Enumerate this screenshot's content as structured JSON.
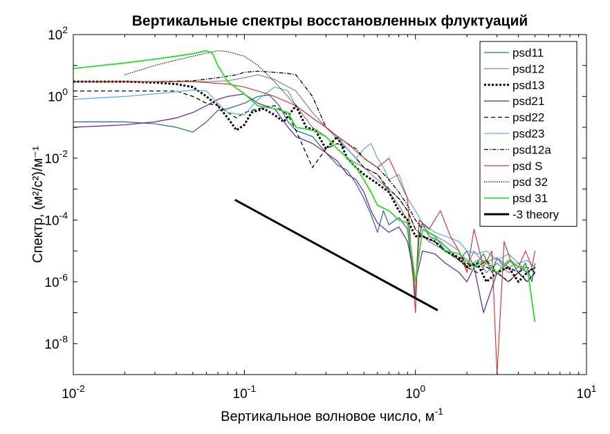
{
  "chart_data": {
    "type": "line",
    "title": "Вертикальные спектры восстановленных флуктуаций",
    "xlabel": "Вертикальное волновое число, м",
    "xlabel_exponent": "-1",
    "ylabel": "Спектр, (м²/с²)/м⁻¹",
    "xscale": "log",
    "yscale": "log",
    "xlim": [
      0.01,
      10
    ],
    "ylim": [
      1e-09,
      100
    ],
    "x_ticks": [
      {
        "value": 0.01,
        "base": "10",
        "exp": "-2"
      },
      {
        "value": 0.1,
        "base": "10",
        "exp": "-1"
      },
      {
        "value": 1,
        "base": "10",
        "exp": "0"
      },
      {
        "value": 10,
        "base": "10",
        "exp": "1"
      }
    ],
    "y_ticks": [
      {
        "value": 1e-08,
        "base": "10",
        "exp": "-8"
      },
      {
        "value": 1e-06,
        "base": "10",
        "exp": "-6"
      },
      {
        "value": 0.0001,
        "base": "10",
        "exp": "-4"
      },
      {
        "value": 0.01,
        "base": "10",
        "exp": "-2"
      },
      {
        "value": 1,
        "base": "10",
        "exp": "0"
      },
      {
        "value": 100,
        "base": "10",
        "exp": "2"
      }
    ],
    "grid": false,
    "legend_position": "top-right",
    "series": [
      {
        "name": "psd11",
        "color": "#2f6da5",
        "dash": "solid",
        "width": 1.3,
        "x": [
          0.01,
          0.02,
          0.03,
          0.04,
          0.05,
          0.06,
          0.07,
          0.08,
          0.1,
          0.12,
          0.14,
          0.16,
          0.18,
          0.2,
          0.25,
          0.3,
          0.35,
          0.4,
          0.45,
          0.5,
          0.55,
          0.6,
          0.65,
          0.7,
          0.8,
          0.9,
          1.0,
          1.05,
          1.1,
          1.2,
          1.4,
          1.6,
          1.8,
          2.0,
          2.2,
          2.5,
          2.8,
          3.0,
          3.3,
          3.6,
          4.0,
          4.4,
          4.8,
          5.0
        ],
        "y": [
          0.15,
          0.15,
          0.13,
          0.1,
          0.07,
          0.15,
          0.35,
          0.4,
          0.6,
          1.0,
          1.1,
          0.5,
          0.15,
          0.08,
          0.05,
          0.015,
          0.006,
          0.004,
          0.0015,
          0.0005,
          0.00015,
          4e-05,
          0.0002,
          7e-05,
          0.00012,
          5e-05,
          3e-07,
          3e-05,
          8e-05,
          3e-05,
          2e-05,
          1e-05,
          5e-06,
          1e-05,
          3e-06,
          8e-06,
          2e-06,
          6e-06,
          3e-06,
          5e-06,
          2e-06,
          4e-06,
          1e-06,
          4e-06
        ]
      },
      {
        "name": "psd12",
        "color": "#8c8c8c",
        "dash": "solid",
        "width": 1.3,
        "x": [
          0.01,
          0.02,
          0.04,
          0.06,
          0.08,
          0.1,
          0.12,
          0.15,
          0.2,
          0.25,
          0.3,
          0.4,
          0.5,
          0.6,
          0.7,
          0.8,
          0.9,
          1.0,
          1.05,
          1.2,
          1.5,
          1.8,
          2.0,
          2.2,
          2.5,
          3.0,
          3.5,
          4.0,
          4.5,
          5.0
        ],
        "y": [
          3.0,
          3.0,
          3.0,
          3.0,
          3.2,
          4.0,
          5.0,
          3.5,
          1.5,
          0.3,
          0.1,
          0.02,
          0.005,
          0.003,
          0.0008,
          0.0003,
          0.0001,
          5e-07,
          8e-05,
          4e-05,
          2e-05,
          1e-05,
          3e-06,
          1e-05,
          4e-06,
          6e-06,
          3e-06,
          4e-06,
          2e-06,
          3e-06
        ]
      },
      {
        "name": "psd13",
        "color": "#000000",
        "dash": "3,2.5",
        "width": 3.0,
        "x": [
          0.01,
          0.02,
          0.03,
          0.04,
          0.05,
          0.06,
          0.07,
          0.08,
          0.09,
          0.1,
          0.11,
          0.13,
          0.15,
          0.17,
          0.2,
          0.23,
          0.26,
          0.3,
          0.35,
          0.4,
          0.45,
          0.5,
          0.6,
          0.7,
          0.8,
          0.9,
          1.0,
          1.1,
          1.3,
          1.5,
          1.8,
          2.0,
          2.3,
          2.6,
          3.0,
          3.5,
          4.0,
          4.5,
          5.0
        ],
        "y": [
          3.0,
          3.0,
          2.8,
          2.5,
          2.0,
          1.0,
          0.5,
          0.2,
          0.08,
          0.12,
          0.3,
          0.4,
          0.25,
          0.15,
          0.5,
          0.1,
          0.08,
          0.02,
          0.05,
          0.01,
          0.005,
          0.003,
          0.0015,
          0.0008,
          0.0002,
          0.0001,
          3e-05,
          3e-05,
          2e-05,
          1e-05,
          6e-06,
          3e-06,
          4e-06,
          1e-06,
          2e-06,
          3e-06,
          1e-06,
          2e-06,
          3e-06
        ]
      },
      {
        "name": "psd21",
        "color": "#6f2a9e",
        "dash": "solid",
        "width": 1.3,
        "x": [
          0.01,
          0.02,
          0.03,
          0.04,
          0.05,
          0.06,
          0.07,
          0.08,
          0.1,
          0.12,
          0.15,
          0.18,
          0.2,
          0.25,
          0.3,
          0.35,
          0.4,
          0.45,
          0.5,
          0.55,
          0.6,
          0.7,
          0.8,
          0.9,
          1.0,
          1.1,
          1.3,
          1.5,
          1.8,
          2.0,
          2.2,
          2.5,
          3.0,
          3.5,
          4.0,
          4.5,
          5.0
        ],
        "y": [
          0.1,
          0.12,
          0.15,
          0.2,
          0.3,
          0.5,
          0.8,
          1.0,
          1.2,
          0.6,
          0.4,
          0.1,
          0.05,
          0.03,
          0.015,
          0.008,
          0.003,
          0.002,
          0.0008,
          0.0002,
          8e-05,
          4e-05,
          6e-05,
          2e-05,
          1e-06,
          1e-05,
          8e-06,
          4e-06,
          2e-06,
          1e-06,
          3e-06,
          1e-07,
          2e-06,
          1e-06,
          2e-06,
          1e-06,
          2e-06
        ]
      },
      {
        "name": "psd22",
        "color": "#000000",
        "dash": "6,4",
        "width": 1.3,
        "x": [
          0.01,
          0.02,
          0.03,
          0.04,
          0.05,
          0.06,
          0.07,
          0.08,
          0.09,
          0.1,
          0.12,
          0.15,
          0.18,
          0.2,
          0.25,
          0.3,
          0.35,
          0.4,
          0.45,
          0.5,
          0.6,
          0.7,
          0.8,
          0.9,
          1.0,
          1.1,
          1.3,
          1.5,
          1.8,
          2.0,
          2.3,
          2.6,
          3.0,
          3.5,
          4.0,
          4.5,
          5.0
        ],
        "y": [
          1.5,
          1.5,
          1.5,
          1.5,
          1.0,
          0.6,
          0.5,
          0.3,
          0.2,
          0.3,
          0.4,
          0.5,
          0.25,
          0.08,
          0.005,
          0.02,
          0.03,
          0.02,
          0.01,
          0.005,
          0.003,
          0.001,
          0.0005,
          0.0002,
          5e-05,
          3e-05,
          2e-05,
          1e-05,
          5e-06,
          3e-06,
          2e-06,
          3e-06,
          2e-06,
          1e-06,
          2e-06,
          1e-06,
          2e-06
        ]
      },
      {
        "name": "psd23",
        "color": "#5ab0e6",
        "dash": "solid",
        "width": 1.3,
        "x": [
          0.01,
          0.02,
          0.03,
          0.04,
          0.05,
          0.06,
          0.07,
          0.08,
          0.1,
          0.12,
          0.15,
          0.18,
          0.2,
          0.25,
          0.3,
          0.35,
          0.4,
          0.45,
          0.5,
          0.55,
          0.6,
          0.65,
          0.7,
          0.8,
          0.9,
          1.0,
          1.1,
          1.3,
          1.5,
          1.8,
          2.0,
          2.3,
          2.6,
          3.0,
          3.5,
          4.0,
          4.5,
          5.0
        ],
        "y": [
          0.8,
          1.0,
          1.2,
          1.4,
          1.6,
          1.5,
          0.6,
          0.3,
          0.25,
          0.8,
          2.0,
          1.5,
          0.5,
          0.2,
          0.1,
          0.05,
          0.02,
          0.01,
          0.02,
          0.03,
          0.01,
          0.005,
          0.002,
          0.003,
          0.0005,
          0.0002,
          8e-05,
          4e-05,
          3e-05,
          2e-05,
          1e-05,
          8e-06,
          1e-05,
          5e-06,
          8e-06,
          4e-06,
          5e-06,
          3e-06
        ]
      },
      {
        "name": "psd12a",
        "color": "#000000",
        "dash": "6,2,1.5,2",
        "width": 1.3,
        "x": [
          0.01,
          0.03,
          0.05,
          0.07,
          0.09,
          0.1,
          0.12,
          0.15,
          0.18,
          0.2,
          0.25,
          0.3,
          0.35,
          0.4,
          0.45,
          0.5,
          0.6,
          0.7,
          0.8,
          0.9,
          1.0,
          1.1,
          1.3,
          1.5,
          1.8,
          2.0,
          2.3,
          2.6,
          3.0,
          3.5,
          4.0,
          4.5,
          5.0
        ],
        "y": [
          3.0,
          3.0,
          3.2,
          4.0,
          5.0,
          6.0,
          6.5,
          6.0,
          5.5,
          5.0,
          1.0,
          0.1,
          0.05,
          0.03,
          0.02,
          0.01,
          0.005,
          0.002,
          0.0008,
          0.0003,
          0.0001,
          5e-05,
          3e-05,
          1e-05,
          8e-06,
          4e-06,
          3e-06,
          5e-06,
          2e-06,
          3e-06,
          2e-06,
          3e-06,
          2e-06
        ]
      },
      {
        "name": "psd S",
        "color": "#d62728",
        "dash": "solid",
        "width": 1.1,
        "x": [
          0.01,
          0.05,
          0.08,
          0.1,
          0.12,
          0.15,
          0.2,
          0.25,
          0.3,
          0.35,
          0.4,
          0.5,
          0.6,
          0.7,
          0.8,
          0.9,
          1.0,
          1.05,
          1.2,
          1.4,
          1.6,
          1.8,
          2.0,
          2.2,
          2.5,
          2.8,
          3.0,
          3.3,
          3.6,
          4.0,
          4.4,
          4.8,
          5.0
        ],
        "y": [
          3.0,
          3.0,
          2.5,
          2.0,
          1.5,
          1.0,
          0.5,
          0.2,
          0.1,
          0.05,
          0.03,
          0.01,
          0.005,
          0.01,
          0.002,
          0.0005,
          1e-07,
          0.0001,
          5e-05,
          0.0002,
          3e-05,
          1e-05,
          2e-06,
          5e-05,
          3e-06,
          1e-05,
          1e-09,
          2e-05,
          5e-06,
          3e-06,
          1e-05,
          3e-06,
          1e-05
        ]
      },
      {
        "name": "psd 32",
        "color": "#000000",
        "dash": "1.2,1.5",
        "width": 1.3,
        "x": [
          0.02,
          0.03,
          0.04,
          0.05,
          0.06,
          0.07,
          0.08,
          0.1,
          0.12,
          0.15,
          0.2,
          0.25,
          0.3,
          0.35,
          0.4,
          0.5,
          0.6,
          0.7,
          0.8,
          0.9,
          1.0,
          1.2,
          1.5,
          1.8,
          2.0,
          2.3,
          2.6,
          3.0,
          3.5,
          4.0,
          4.5,
          5.0
        ],
        "y": [
          5.0,
          10.0,
          15.0,
          20.0,
          25.0,
          30.0,
          28.0,
          20.0,
          10.0,
          3.0,
          0.5,
          0.1,
          0.05,
          0.02,
          0.01,
          0.005,
          0.002,
          0.001,
          0.0005,
          0.0002,
          5e-05,
          2e-05,
          1e-05,
          5e-06,
          3e-06,
          5e-06,
          2e-06,
          4e-06,
          2e-06,
          3e-06,
          2e-06,
          3e-06
        ]
      },
      {
        "name": "psd 31",
        "color": "#22e022",
        "dash": "solid",
        "width": 1.8,
        "x": [
          0.01,
          0.02,
          0.03,
          0.04,
          0.05,
          0.06,
          0.065,
          0.07,
          0.08,
          0.1,
          0.12,
          0.15,
          0.18,
          0.2,
          0.25,
          0.3,
          0.35,
          0.4,
          0.45,
          0.5,
          0.55,
          0.6,
          0.7,
          0.8,
          0.9,
          1.0,
          1.1,
          1.3,
          1.5,
          1.8,
          2.0,
          2.2,
          2.5,
          3.0,
          3.5,
          4.0,
          4.5,
          5.0
        ],
        "y": [
          8.0,
          12.0,
          16.0,
          20.0,
          24.0,
          30.0,
          25.0,
          10.0,
          3.0,
          1.2,
          0.5,
          0.4,
          0.3,
          0.1,
          0.08,
          0.05,
          0.02,
          0.01,
          0.005,
          0.002,
          0.0008,
          0.0003,
          0.0002,
          0.0001,
          8e-05,
          1e-06,
          5e-05,
          3e-05,
          1e-05,
          8e-06,
          5e-06,
          3e-06,
          5e-06,
          2e-06,
          5e-06,
          3e-06,
          3e-06,
          5e-08
        ]
      },
      {
        "name": "-3 theory",
        "color": "#000000",
        "dash": "solid",
        "width": 3.0,
        "x": [
          0.088,
          1.35
        ],
        "y": [
          0.00045,
          1.2e-07
        ]
      }
    ]
  }
}
